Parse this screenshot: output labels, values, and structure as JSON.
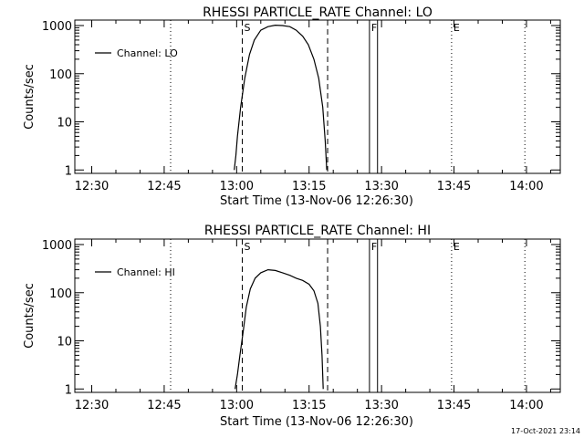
{
  "footer_timestamp": "17-Oct-2021 23:14",
  "chart_data": [
    {
      "type": "line",
      "title": "RHESSI PARTICLE_RATE Channel: LO",
      "xlabel": "Start Time (13-Nov-06 12:26:30)",
      "ylabel": "Counts/sec",
      "yscale": "log",
      "ylim": [
        0.85,
        1300
      ],
      "xlim": [
        "12:26:30",
        "14:07:00"
      ],
      "x_ticks": [
        "12:30",
        "12:45",
        "13:00",
        "13:15",
        "13:30",
        "13:45",
        "14:00"
      ],
      "y_ticks": [
        "1",
        "10",
        "100",
        "1000"
      ],
      "legend": "top-left",
      "grid": false,
      "series": [
        {
          "name": "Channel: LO",
          "x": [
            "12:59:30",
            "12:59:50",
            "13:00:10",
            "13:00:50",
            "13:01:40",
            "13:02:40",
            "13:03:40",
            "13:05:00",
            "13:06:30",
            "13:08:00",
            "13:09:30",
            "13:11:00",
            "13:12:20",
            "13:13:40",
            "13:14:50",
            "13:16:00",
            "13:17:00",
            "13:17:50",
            "13:18:20",
            "13:18:40"
          ],
          "y": [
            1,
            2,
            5,
            20,
            80,
            250,
            500,
            800,
            950,
            1020,
            1000,
            950,
            800,
            600,
            400,
            200,
            80,
            20,
            4,
            1
          ]
        }
      ],
      "markers": [
        {
          "label": "S",
          "time": "13:01:10",
          "style": "dashed"
        },
        {
          "label": "",
          "time": "13:18:50",
          "style": "dashed"
        },
        {
          "label": "F",
          "time": "13:27:30",
          "style": "solid"
        },
        {
          "label": "",
          "time": "13:29:10",
          "style": "solid"
        },
        {
          "label": "E",
          "time": "13:44:30",
          "style": "dotted"
        },
        {
          "label": "",
          "time": "12:46:20",
          "style": "dotted"
        },
        {
          "label": "",
          "time": "13:59:40",
          "style": "dotted"
        }
      ]
    },
    {
      "type": "line",
      "title": "RHESSI PARTICLE_RATE Channel: HI",
      "xlabel": "Start Time (13-Nov-06 12:26:30)",
      "ylabel": "Counts/sec",
      "yscale": "log",
      "ylim": [
        0.85,
        1300
      ],
      "xlim": [
        "12:26:30",
        "14:07:00"
      ],
      "x_ticks": [
        "12:30",
        "12:45",
        "13:00",
        "13:15",
        "13:30",
        "13:45",
        "14:00"
      ],
      "y_ticks": [
        "1",
        "10",
        "100",
        "1000"
      ],
      "legend": "top-left",
      "grid": false,
      "series": [
        {
          "name": "Channel: HI",
          "x": [
            "12:59:40",
            "13:00:10",
            "13:00:40",
            "13:01:20",
            "13:02:00",
            "13:02:50",
            "13:03:50",
            "13:05:00",
            "13:06:30",
            "13:08:00",
            "13:09:30",
            "13:11:00",
            "13:12:20",
            "13:13:40",
            "13:15:00",
            "13:16:00",
            "13:16:50",
            "13:17:20",
            "13:17:40",
            "13:17:55"
          ],
          "y": [
            1,
            2,
            5,
            15,
            50,
            120,
            200,
            260,
            300,
            290,
            260,
            230,
            200,
            180,
            150,
            110,
            60,
            20,
            5,
            1
          ]
        }
      ],
      "markers": [
        {
          "label": "S",
          "time": "13:01:10",
          "style": "dashed"
        },
        {
          "label": "",
          "time": "13:18:50",
          "style": "dashed"
        },
        {
          "label": "F",
          "time": "13:27:30",
          "style": "solid"
        },
        {
          "label": "",
          "time": "13:29:10",
          "style": "solid"
        },
        {
          "label": "E",
          "time": "13:44:30",
          "style": "dotted"
        },
        {
          "label": "",
          "time": "12:46:20",
          "style": "dotted"
        },
        {
          "label": "",
          "time": "13:59:40",
          "style": "dotted"
        }
      ]
    }
  ]
}
